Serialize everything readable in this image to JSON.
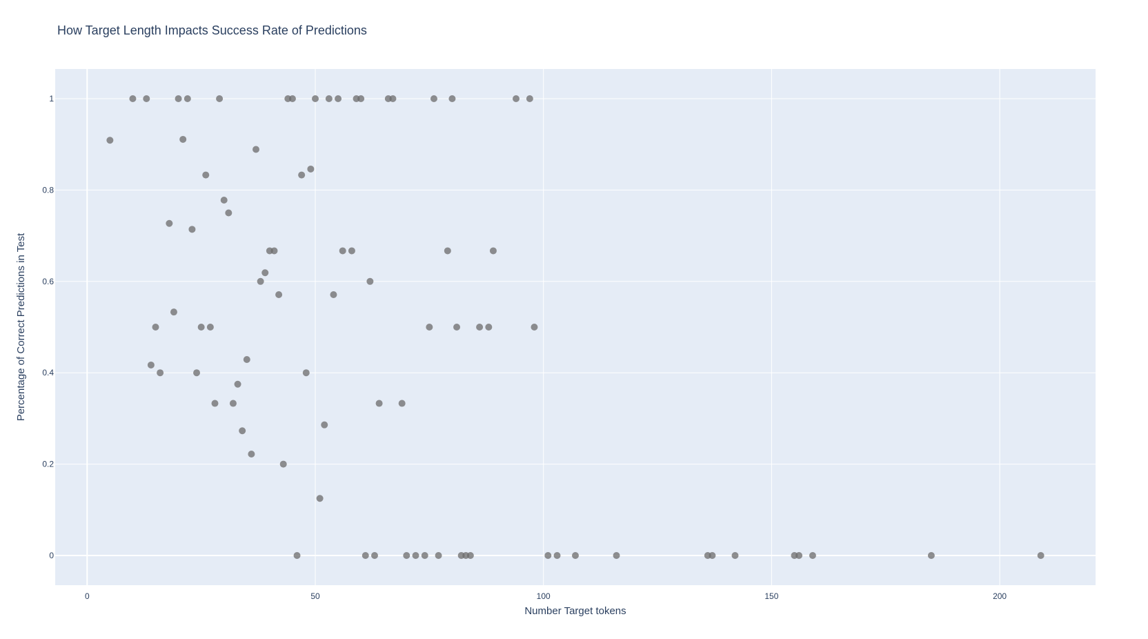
{
  "chart_data": {
    "type": "scatter",
    "title": "How Target Length Impacts Success Rate of Predictions",
    "xlabel": "Number Target tokens",
    "ylabel": "Percentage of Correct Predictions in Test",
    "xlim": [
      -7,
      221
    ],
    "ylim": [
      -0.065,
      1.065
    ],
    "x_ticks": [
      0,
      50,
      100,
      150,
      200
    ],
    "y_ticks": [
      0,
      0.2,
      0.4,
      0.6,
      0.8,
      1
    ],
    "x_tick_labels": [
      "0",
      "50",
      "100",
      "150",
      "200"
    ],
    "y_tick_labels": [
      "0",
      "0.2",
      "0.4",
      "0.6",
      "0.8",
      "1"
    ],
    "grid": true,
    "colors": {
      "plot_background": "#e5ecf6",
      "grid": "#ffffff",
      "marker": "#6b6b6b",
      "text": "#2a3f5f"
    },
    "points": [
      [
        5,
        0.909
      ],
      [
        10,
        1
      ],
      [
        13,
        1
      ],
      [
        14,
        0.417
      ],
      [
        15,
        0.5
      ],
      [
        16,
        0.4
      ],
      [
        18,
        0.727
      ],
      [
        19,
        0.533
      ],
      [
        20,
        1
      ],
      [
        21,
        0.911
      ],
      [
        22,
        1
      ],
      [
        23,
        0.714
      ],
      [
        24,
        0.4
      ],
      [
        25,
        0.5
      ],
      [
        26,
        0.833
      ],
      [
        27,
        0.5
      ],
      [
        28,
        0.333
      ],
      [
        29,
        1
      ],
      [
        30,
        0.778
      ],
      [
        31,
        0.75
      ],
      [
        32,
        0.333
      ],
      [
        33,
        0.375
      ],
      [
        34,
        0.273
      ],
      [
        35,
        0.429
      ],
      [
        36,
        0.222
      ],
      [
        37,
        0.889
      ],
      [
        38,
        0.6
      ],
      [
        39,
        0.619
      ],
      [
        40,
        0.667
      ],
      [
        41,
        0.667
      ],
      [
        42,
        0.571
      ],
      [
        43,
        0.2
      ],
      [
        44,
        1
      ],
      [
        45,
        1
      ],
      [
        46,
        0
      ],
      [
        47,
        0.833
      ],
      [
        48,
        0.4
      ],
      [
        49,
        0.846
      ],
      [
        50,
        1
      ],
      [
        51,
        0.125
      ],
      [
        52,
        0.286
      ],
      [
        53,
        1
      ],
      [
        54,
        0.571
      ],
      [
        55,
        1
      ],
      [
        56,
        0.667
      ],
      [
        58,
        0.667
      ],
      [
        59,
        1
      ],
      [
        60,
        1
      ],
      [
        61,
        0
      ],
      [
        62,
        0.6
      ],
      [
        63,
        0
      ],
      [
        64,
        0.333
      ],
      [
        66,
        1
      ],
      [
        67,
        1
      ],
      [
        69,
        0.333
      ],
      [
        70,
        0
      ],
      [
        72,
        0
      ],
      [
        74,
        0
      ],
      [
        75,
        0.5
      ],
      [
        76,
        1
      ],
      [
        77,
        0
      ],
      [
        79,
        0.667
      ],
      [
        80,
        1
      ],
      [
        81,
        0.5
      ],
      [
        82,
        0
      ],
      [
        83,
        0
      ],
      [
        84,
        0
      ],
      [
        86,
        0.5
      ],
      [
        88,
        0.5
      ],
      [
        89,
        0.667
      ],
      [
        94,
        1
      ],
      [
        97,
        1
      ],
      [
        98,
        0.5
      ],
      [
        101,
        0
      ],
      [
        103,
        0
      ],
      [
        107,
        0
      ],
      [
        116,
        0
      ],
      [
        136,
        0
      ],
      [
        137,
        0
      ],
      [
        142,
        0
      ],
      [
        155,
        0
      ],
      [
        156,
        0
      ],
      [
        159,
        0
      ],
      [
        185,
        0
      ],
      [
        209,
        0
      ]
    ]
  }
}
